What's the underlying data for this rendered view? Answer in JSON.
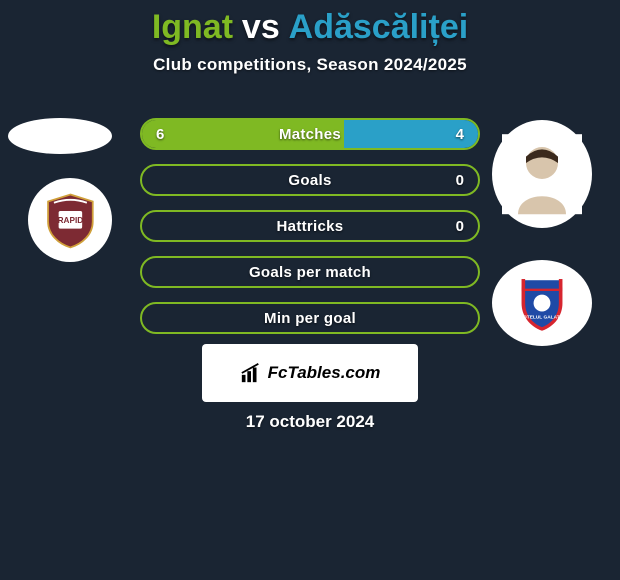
{
  "title": {
    "player1": "Ignat",
    "vs": "vs",
    "player2": "Adăscăliței",
    "color1": "#7fb923",
    "color_vs": "#ffffff",
    "color2": "#2aa0c8",
    "fontsize": 34
  },
  "subtitle": {
    "text": "Club competitions, Season 2024/2025",
    "fontsize": 17
  },
  "stats": {
    "bar_bg_left": "#7fb923",
    "bar_bg_right": "#2aa0c8",
    "border_color": "#7fb923",
    "rows": [
      {
        "label": "Matches",
        "left": "6",
        "right": "4",
        "left_pct": 60,
        "right_pct": 40
      },
      {
        "label": "Goals",
        "left": "",
        "right": "0",
        "left_pct": 0,
        "right_pct": 0
      },
      {
        "label": "Hattricks",
        "left": "",
        "right": "0",
        "left_pct": 0,
        "right_pct": 0
      },
      {
        "label": "Goals per match",
        "left": "",
        "right": "",
        "left_pct": 0,
        "right_pct": 0
      },
      {
        "label": "Min per goal",
        "left": "",
        "right": "",
        "left_pct": 0,
        "right_pct": 0
      }
    ]
  },
  "watermark": {
    "text": "FcTables.com"
  },
  "date": {
    "text": "17 october 2024"
  },
  "clubs": {
    "left": {
      "primary": "#7d2a33",
      "secondary": "#ffffff",
      "accent": "#d0a03a"
    },
    "right": {
      "primary": "#1f4aa6",
      "secondary": "#d6252f",
      "accent": "#ffffff"
    }
  },
  "background_color": "#1a2533"
}
